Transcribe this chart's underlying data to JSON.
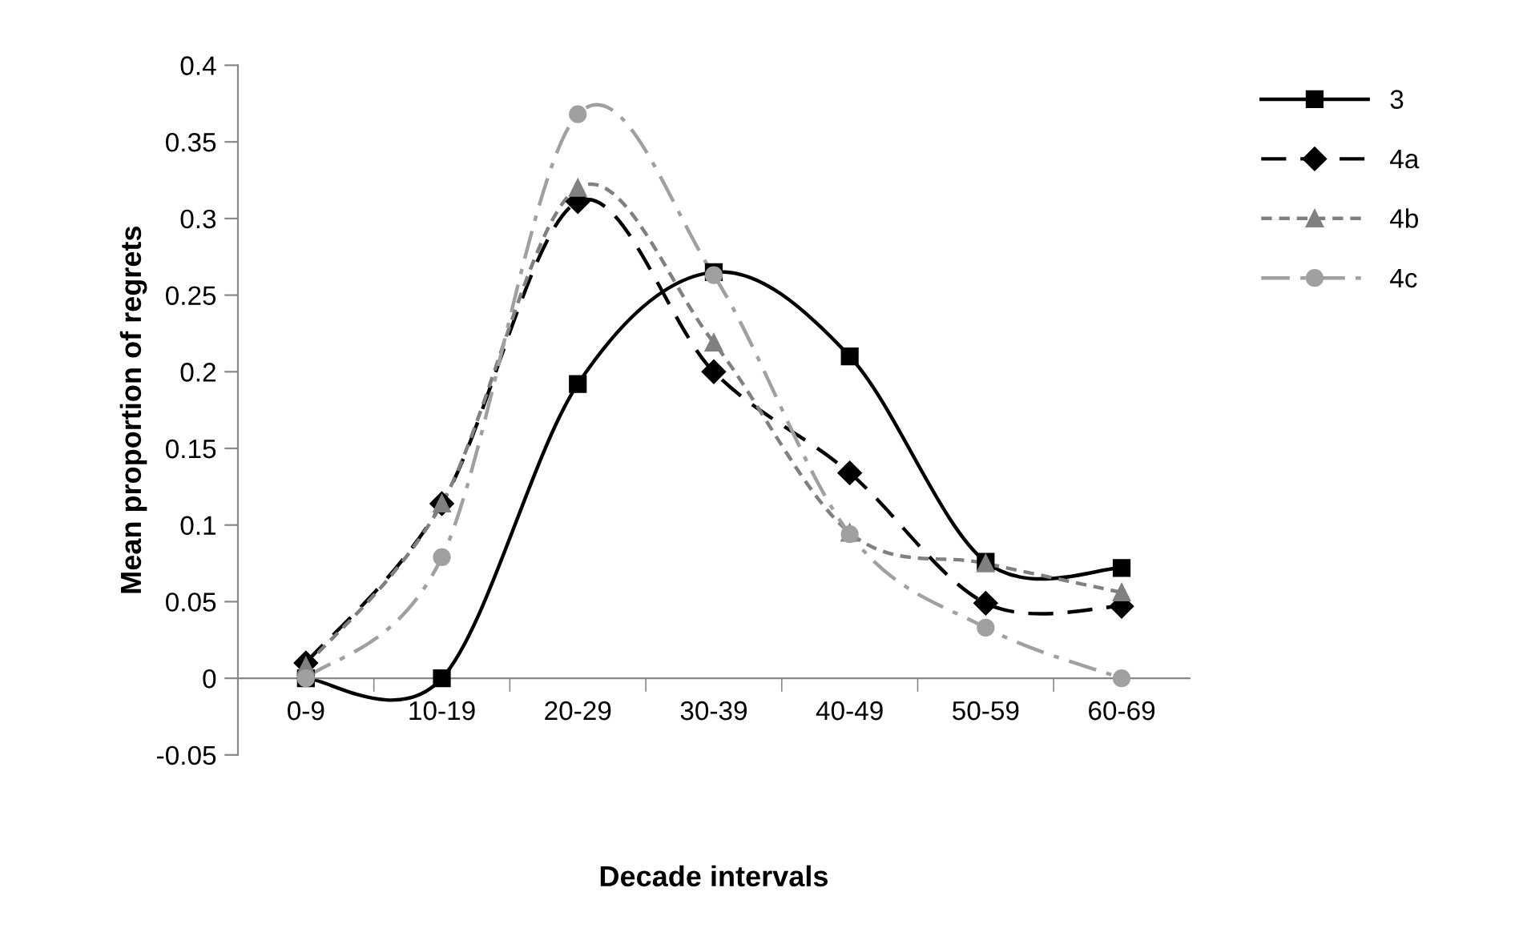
{
  "chart_data": {
    "type": "line",
    "xlabel": "Decade intervals",
    "ylabel": "Mean proportion of regrets",
    "categories": [
      "0-9",
      "10-19",
      "20-29",
      "30-39",
      "40-49",
      "50-59",
      "60-69"
    ],
    "ylim": [
      -0.05,
      0.4
    ],
    "yticks": [
      {
        "value": -0.05,
        "label": "-0.05"
      },
      0,
      0.05,
      0.1,
      0.15,
      0.2,
      0.25,
      0.3,
      0.35,
      0.4
    ],
    "grid": false,
    "legend": "top right",
    "series": [
      {
        "name": "3",
        "color": "#000000",
        "marker": "square",
        "line_style": "solid",
        "values": [
          0,
          0,
          0.192,
          0.265,
          0.21,
          0.076,
          0.072
        ]
      },
      {
        "name": "4a",
        "color": "#000000",
        "marker": "diamond",
        "line_style": "dashed",
        "values": [
          0.01,
          0.114,
          0.311,
          0.2,
          0.134,
          0.049,
          0.047
        ]
      },
      {
        "name": "4b",
        "color": "#808080",
        "marker": "triangle",
        "line_style": "dotted",
        "values": [
          0.008,
          0.114,
          0.32,
          0.219,
          0.095,
          0.075,
          0.056
        ]
      },
      {
        "name": "4c",
        "color": "#a0a0a0",
        "marker": "circle",
        "line_style": "dashdot",
        "values": [
          0,
          0.079,
          0.368,
          0.263,
          0.094,
          0.033,
          0
        ]
      }
    ]
  }
}
